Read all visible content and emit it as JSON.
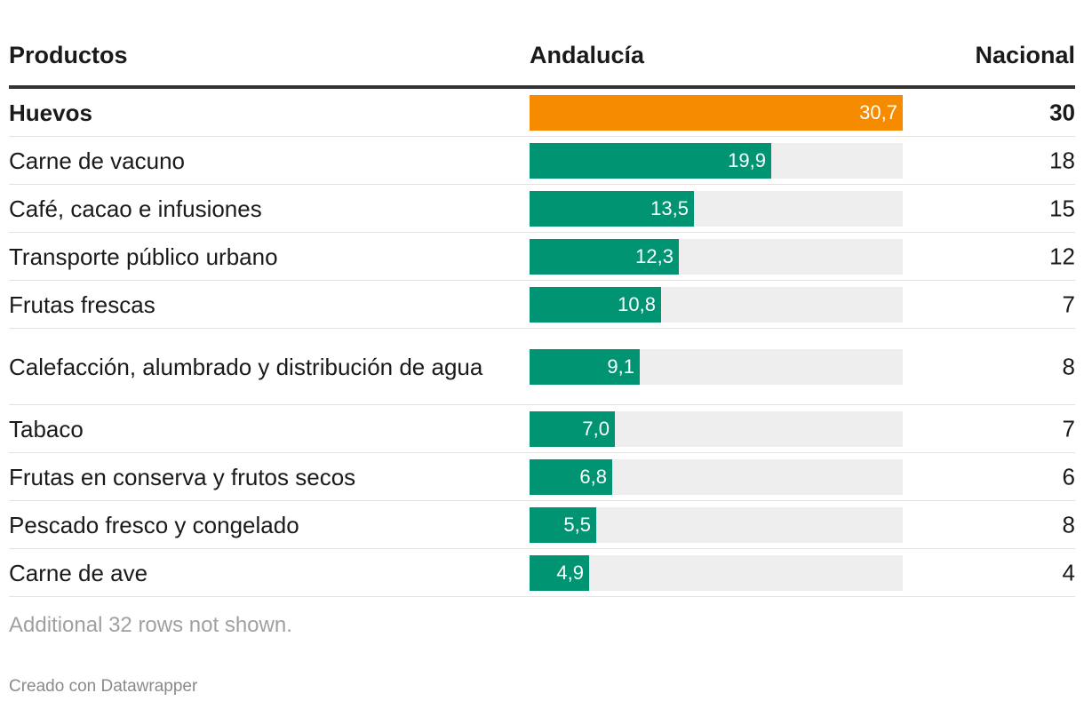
{
  "header": {
    "products": "Productos",
    "andalucia": "Andalucía",
    "nacional": "Nacional"
  },
  "colors": {
    "bar": "#009473",
    "highlight": "#f78b00",
    "track": "#eeeeee"
  },
  "chart_data": {
    "type": "table",
    "bar_column": "Andalucía",
    "bar_max": 30.7,
    "rows": [
      {
        "producto": "Huevos",
        "andalucia": 30.7,
        "andalucia_label": "30,7",
        "nacional": "30",
        "highlight": true
      },
      {
        "producto": "Carne de vacuno",
        "andalucia": 19.9,
        "andalucia_label": "19,9",
        "nacional": "18",
        "highlight": false
      },
      {
        "producto": "Café, cacao e infusiones",
        "andalucia": 13.5,
        "andalucia_label": "13,5",
        "nacional": "15",
        "highlight": false
      },
      {
        "producto": "Transporte público urbano",
        "andalucia": 12.3,
        "andalucia_label": "12,3",
        "nacional": "12",
        "highlight": false
      },
      {
        "producto": "Frutas frescas",
        "andalucia": 10.8,
        "andalucia_label": "10,8",
        "nacional": "7",
        "highlight": false
      },
      {
        "producto": "Calefacción, alumbrado y distribución de agua",
        "andalucia": 9.1,
        "andalucia_label": "9,1",
        "nacional": "8",
        "highlight": false
      },
      {
        "producto": "Tabaco",
        "andalucia": 7.0,
        "andalucia_label": "7,0",
        "nacional": "7",
        "highlight": false
      },
      {
        "producto": "Frutas en conserva y frutos secos",
        "andalucia": 6.8,
        "andalucia_label": "6,8",
        "nacional": "6",
        "highlight": false
      },
      {
        "producto": "Pescado fresco y congelado",
        "andalucia": 5.5,
        "andalucia_label": "5,5",
        "nacional": "8",
        "highlight": false
      },
      {
        "producto": "Carne de ave",
        "andalucia": 4.9,
        "andalucia_label": "4,9",
        "nacional": "4",
        "highlight": false
      }
    ]
  },
  "footer": {
    "note": "Additional 32 rows not shown.",
    "credit": "Creado con Datawrapper"
  }
}
